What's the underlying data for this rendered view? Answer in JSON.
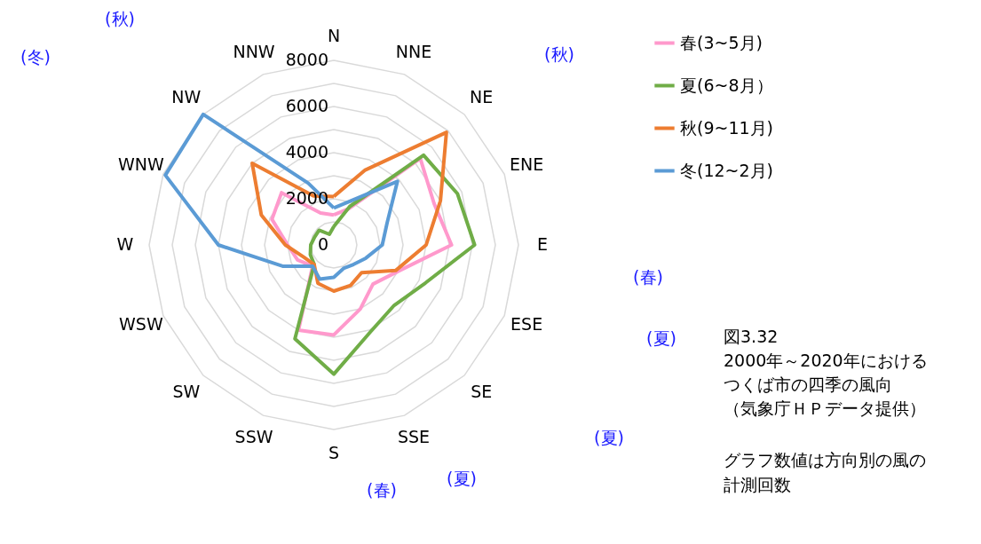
{
  "chart_data": {
    "type": "radar",
    "categories": [
      "N",
      "NNE",
      "NE",
      "ENE",
      "E",
      "ESE",
      "SE",
      "SSE",
      "S",
      "SSW",
      "SW",
      "WSW",
      "W",
      "WNW",
      "NW",
      "NNW"
    ],
    "series": [
      {
        "name": "春(3~5月)",
        "color": "#ff99cc",
        "values": [
          1300,
          1700,
          5300,
          4700,
          5100,
          3000,
          2400,
          3000,
          3900,
          4000,
          1300,
          1700,
          2000,
          2900,
          3200,
          1500
        ]
      },
      {
        "name": "夏(6~8月）",
        "color": "#70ad47",
        "values": [
          800,
          1800,
          5500,
          5800,
          6100,
          4300,
          3700,
          4100,
          5600,
          4400,
          1200,
          1100,
          1000,
          900,
          900,
          500
        ]
      },
      {
        "name": "秋(9~11月)",
        "color": "#ed7d31",
        "values": [
          2100,
          3500,
          6900,
          5000,
          4000,
          2900,
          1700,
          1900,
          2000,
          1800,
          1200,
          1400,
          2100,
          3400,
          5000,
          2300
        ]
      },
      {
        "name": "冬(12~2月)",
        "color": "#5b9bd5",
        "values": [
          1600,
          2100,
          3900,
          2500,
          2100,
          1500,
          1200,
          1100,
          1400,
          1600,
          1300,
          2400,
          5000,
          7900,
          8000,
          2900
        ]
      }
    ],
    "ylim": [
      0,
      8000
    ],
    "yticks": [
      0,
      2000,
      4000,
      6000,
      8000
    ],
    "grid": true,
    "legend": "top right",
    "line_style": "solid",
    "marker": "none",
    "annotations": [
      "(秋)",
      "(冬)",
      "(秋)",
      "(春)",
      "(夏)",
      "(夏)",
      "(春)",
      "(夏)",
      "図3.32",
      "2000年～2020年における",
      "つくば市の四季の風向",
      "（気象庁ＨＰデータ提供）",
      "グラフ数値は方向別の風の",
      "計測回数"
    ]
  }
}
